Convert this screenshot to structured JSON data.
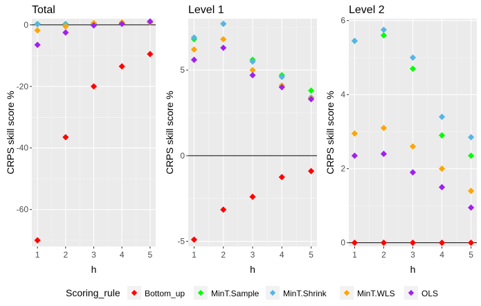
{
  "chart_data": {
    "type": "scatter",
    "xlabel": "h",
    "ylabel": "CRPS skill score %",
    "legend": {
      "title": "Scoring_rule",
      "position": "bottom",
      "entries": [
        {
          "name": "Bottom_up",
          "color": "#ff0000"
        },
        {
          "name": "MinT.Sample",
          "color": "#00ff00"
        },
        {
          "name": "MinT.Shrink",
          "color": "#56b4e9"
        },
        {
          "name": "MinT.WLS",
          "color": "#ffa500"
        },
        {
          "name": "OLS",
          "color": "#a020f0"
        }
      ]
    },
    "x_ticks": [
      "1",
      "2",
      "3",
      "4",
      "5"
    ],
    "reference_line_y": 0,
    "panels": [
      {
        "title": "Total",
        "ylim": [
          -72,
          2
        ],
        "yticks": [
          0,
          -20,
          -40,
          -60
        ],
        "ytick_labels": [
          "0",
          "-20",
          "-40",
          "-60"
        ],
        "x": [
          1,
          2,
          3,
          4,
          5
        ],
        "series": [
          {
            "name": "Bottom_up",
            "values": [
              -70.0,
              -36.5,
              -20.0,
              -13.5,
              -9.5
            ]
          },
          {
            "name": "MinT.Sample",
            "values": [
              0.3,
              0.3,
              0.3,
              0.5,
              0.9
            ]
          },
          {
            "name": "MinT.Shrink",
            "values": [
              0.2,
              0.2,
              0.3,
              0.4,
              0.8
            ]
          },
          {
            "name": "MinT.WLS",
            "values": [
              -1.8,
              -0.5,
              0.6,
              0.8,
              0.9
            ]
          },
          {
            "name": "OLS",
            "values": [
              -6.5,
              -2.5,
              -0.2,
              0.3,
              1.1
            ]
          }
        ]
      },
      {
        "title": "Level 1",
        "ylim": [
          -5.3,
          8.0
        ],
        "yticks": [
          -5,
          0,
          5
        ],
        "ytick_labels": [
          "-5",
          "0",
          "5"
        ],
        "x": [
          1,
          2,
          3,
          4,
          5
        ],
        "series": [
          {
            "name": "Bottom_up",
            "values": [
              -4.9,
              -3.15,
              -2.4,
              -1.25,
              -0.9
            ]
          },
          {
            "name": "MinT.Sample",
            "values": [
              6.8,
              7.7,
              5.6,
              4.7,
              3.8
            ]
          },
          {
            "name": "MinT.Shrink",
            "values": [
              6.9,
              7.7,
              5.5,
              4.6,
              3.4
            ]
          },
          {
            "name": "MinT.WLS",
            "values": [
              6.2,
              6.8,
              5.0,
              4.1,
              3.35
            ]
          },
          {
            "name": "OLS",
            "values": [
              5.6,
              6.3,
              4.7,
              4.0,
              3.3
            ]
          }
        ]
      },
      {
        "title": "Level 2",
        "ylim": [
          -0.1,
          6.05
        ],
        "yticks": [
          0,
          2,
          4,
          6
        ],
        "ytick_labels": [
          "0",
          "2",
          "4",
          "6"
        ],
        "x": [
          1,
          2,
          3,
          4,
          5
        ],
        "series": [
          {
            "name": "Bottom_up",
            "values": [
              0.0,
              0.0,
              0.0,
              0.0,
              0.0
            ]
          },
          {
            "name": "MinT.Sample",
            "values": [
              5.45,
              5.6,
              4.7,
              2.9,
              2.35
            ]
          },
          {
            "name": "MinT.Shrink",
            "values": [
              5.45,
              5.75,
              5.0,
              3.4,
              2.85
            ]
          },
          {
            "name": "MinT.WLS",
            "values": [
              2.95,
              3.1,
              2.6,
              2.0,
              1.4
            ]
          },
          {
            "name": "OLS",
            "values": [
              2.35,
              2.4,
              1.9,
              1.5,
              0.95
            ]
          }
        ]
      }
    ]
  }
}
